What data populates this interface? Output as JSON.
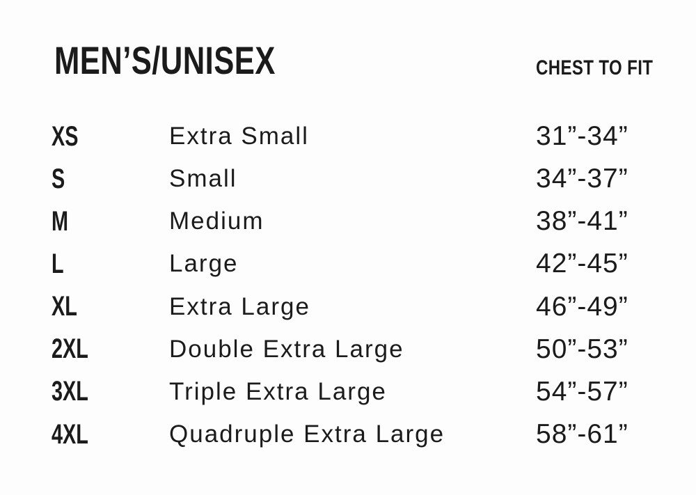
{
  "header": {
    "title": "MEN’S/UNISEX",
    "chest_to_fit_label": "CHEST TO FIT"
  },
  "colors": {
    "text": "#1b1b1b",
    "background": "#fdfdfd"
  },
  "chart_data": {
    "type": "table",
    "title": "MEN’S/UNISEX",
    "columns": [
      "",
      "",
      "CHEST TO FIT"
    ],
    "rows": [
      {
        "code": "XS",
        "name": "Extra Small",
        "chest_display": "31”-34”",
        "chest_min_in": 31,
        "chest_max_in": 34
      },
      {
        "code": "S",
        "name": "Small",
        "chest_display": "34”-37”",
        "chest_min_in": 34,
        "chest_max_in": 37
      },
      {
        "code": "M",
        "name": "Medium",
        "chest_display": "38”-41”",
        "chest_min_in": 38,
        "chest_max_in": 41
      },
      {
        "code": "L",
        "name": "Large",
        "chest_display": "42”-45”",
        "chest_min_in": 42,
        "chest_max_in": 45
      },
      {
        "code": "XL",
        "name": "Extra Large",
        "chest_display": "46”-49”",
        "chest_min_in": 46,
        "chest_max_in": 49
      },
      {
        "code": "2XL",
        "name": "Double Extra Large",
        "chest_display": "50”-53”",
        "chest_min_in": 50,
        "chest_max_in": 53
      },
      {
        "code": "3XL",
        "name": "Triple Extra Large",
        "chest_display": "54”-57”",
        "chest_min_in": 54,
        "chest_max_in": 57
      },
      {
        "code": "4XL",
        "name": "Quadruple Extra Large",
        "chest_display": "58”-61”",
        "chest_min_in": 58,
        "chest_max_in": 61
      }
    ]
  }
}
